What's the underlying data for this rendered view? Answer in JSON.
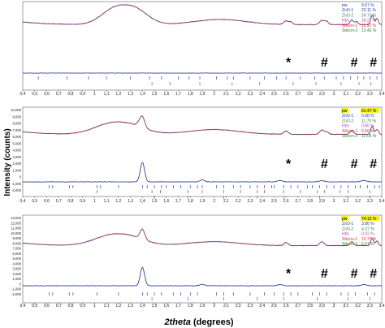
{
  "chart_data": {
    "type": "line",
    "ylabel": "Intensity (counts)",
    "xlabel_italic": "2theta",
    "xlabel_rest": " (degrees)",
    "x_ticks": [
      "0,4",
      "0,5",
      "0,6",
      "0,7",
      "0,8",
      "0,9",
      "1",
      "1,1",
      "1,2",
      "1,3",
      "1,4",
      "1,5",
      "1,6",
      "1,7",
      "1,8",
      "1,9",
      "2",
      "2,1",
      "2,2",
      "2,3",
      "2,4",
      "2,5",
      "2,6",
      "2,7",
      "2,8",
      "2,9",
      "3",
      "3,1",
      "3,2",
      "3,3",
      "3,4"
    ],
    "xlim": [
      0.4,
      3.4
    ],
    "marker_positions": [
      2.62,
      2.92,
      3.17,
      3.33
    ],
    "marker_symbols": [
      "*",
      "#",
      "#",
      "#"
    ],
    "series_colors": {
      "observed": "#cc3344",
      "calculated": "#3355aa",
      "difference": "#1a2a8a"
    },
    "panels": [
      {
        "y_ticks": [],
        "legend": [
          {
            "name": "pw",
            "value": "9.97 %",
            "color": "#3333aa",
            "highlight": false
          },
          {
            "name": "ZnO-1",
            "value": "22.11 %",
            "color": "#3333aa",
            "highlight": false
          },
          {
            "name": "ZnO-2",
            "value": "24.71 %",
            "color": "#228833",
            "highlight": false
          },
          {
            "name": "Hbs",
            "value": "18.27 %",
            "color": "#bb44bb",
            "highlight": false
          },
          {
            "name": "Silicon-1",
            "value": "11.52 %",
            "color": "#cc3344",
            "highlight": false
          },
          {
            "name": "Silicon-2",
            "value": "13.42 %",
            "color": "#228833",
            "highlight": false
          }
        ],
        "profile": {
          "baseline": 0.62,
          "humps": [
            [
              0.4,
              0.05,
              0.2,
              1.2
            ],
            [
              1.25,
              0.38,
              0.22,
              2.5
            ],
            [
              2.05,
              0.1,
              0.3,
              2.0
            ]
          ],
          "peaks": [
            [
              2.6,
              0.07,
              0.018
            ],
            [
              2.64,
              0.05,
              0.015
            ],
            [
              2.9,
              0.08,
              0.02
            ],
            [
              2.94,
              0.06,
              0.015
            ],
            [
              3.15,
              0.09,
              0.015
            ],
            [
              3.19,
              0.06,
              0.012
            ],
            [
              3.32,
              0.18,
              0.012
            ],
            [
              3.36,
              0.12,
              0.012
            ]
          ],
          "scale": 1.0
        },
        "diff": {
          "peaks": [],
          "noise": 0.01
        },
        "refs": {
          "row1": [
            0.53,
            0.77,
            0.95,
            1.1,
            1.3,
            1.46,
            1.56,
            1.7,
            1.79,
            1.88,
            2.02,
            2.11,
            2.16,
            2.3,
            2.42,
            2.52,
            2.6,
            2.72,
            2.84,
            2.92,
            3.02,
            3.08,
            3.14,
            3.2,
            3.25,
            3.3,
            3.36
          ],
          "row2": [
            1.48,
            1.63,
            1.88,
            2.15,
            2.38,
            2.66,
            2.85,
            3.06,
            3.21,
            3.31
          ]
        }
      },
      {
        "y_ticks": [
          "10,000",
          "9,000",
          "8,000",
          "7,000",
          "6,000",
          "5,000",
          "4,000",
          "3,000",
          "2,000",
          "1,000",
          "0",
          "-1,000",
          "-2,000"
        ],
        "legend": [
          {
            "name": "pw",
            "value": "61.47 %",
            "color": "#000000",
            "highlight": true
          },
          {
            "name": "ZnO-1",
            "value": "6.98 %",
            "color": "#3333aa",
            "highlight": false
          },
          {
            "name": "ZnO-2",
            "value": "11.70 %",
            "color": "#228833",
            "highlight": false
          },
          {
            "name": "Hbs",
            "value": "0.80 %",
            "color": "#bb44bb",
            "highlight": false
          },
          {
            "name": "Silicon-1",
            "value": "6.56 %",
            "color": "#cc3344",
            "highlight": false
          },
          {
            "name": "Silicon-2",
            "value": "12.06 %",
            "color": "#228833",
            "highlight": false
          }
        ],
        "profile": {
          "baseline": 0.5,
          "humps": [
            [
              0.4,
              0.05,
              0.2,
              1.2
            ],
            [
              1.2,
              0.26,
              0.25,
              2.2
            ],
            [
              2.0,
              0.1,
              0.3,
              2.0
            ]
          ],
          "peaks": [
            [
              1.4,
              0.22,
              0.02
            ],
            [
              1.37,
              0.05,
              0.02
            ],
            [
              2.6,
              0.07,
              0.018
            ],
            [
              2.9,
              0.09,
              0.018
            ],
            [
              2.94,
              0.05,
              0.015
            ],
            [
              3.15,
              0.08,
              0.015
            ],
            [
              3.32,
              0.17,
              0.012
            ],
            [
              3.36,
              0.1,
              0.012
            ]
          ],
          "scale": 1.0
        },
        "diff": {
          "peaks": [
            [
              1.4,
              0.8,
              0.018
            ],
            [
              1.9,
              0.08,
              0.02
            ],
            [
              2.55,
              0.06,
              0.02
            ],
            [
              2.9,
              0.05,
              0.02
            ],
            [
              3.25,
              0.06,
              0.02
            ]
          ],
          "noise": 0.015
        },
        "refs": {
          "row1": [
            0.62,
            0.65,
            0.79,
            0.82,
            1.02,
            1.05,
            1.2,
            1.4,
            1.44,
            1.5,
            1.56,
            1.6,
            1.66,
            1.72,
            1.8,
            1.86,
            1.9,
            2.02,
            2.08,
            2.16,
            2.22,
            2.3,
            2.36,
            2.42,
            2.48,
            2.5,
            2.58,
            2.64,
            2.7,
            2.78,
            2.82,
            2.88,
            2.94,
            3.0,
            3.06,
            3.12,
            3.18,
            3.22,
            3.28,
            3.34,
            3.38
          ],
          "row2": [
            1.02,
            1.48,
            1.55,
            1.78,
            1.9,
            2.08,
            2.22,
            2.36,
            2.42,
            2.58,
            2.72,
            2.86,
            2.92,
            3.05,
            3.12,
            3.3
          ],
          "row3": [
            1.5,
            1.78,
            2.08,
            2.36,
            2.58,
            2.88,
            3.12,
            3.3
          ]
        }
      },
      {
        "y_ticks": [
          "13,000",
          "12,000",
          "11,000",
          "10,000",
          "9,000",
          "8,000",
          "7,000",
          "6,000",
          "5,000",
          "4,000",
          "3,000",
          "2,000",
          "1,000",
          "0",
          "-1,000",
          "-2,000"
        ],
        "legend": [
          {
            "name": "pw",
            "value": "74.12 %",
            "color": "#000000",
            "highlight": true
          },
          {
            "name": "ZnO-1",
            "value": "3.86 %",
            "color": "#3333aa",
            "highlight": false
          },
          {
            "name": "ZnO-2",
            "value": "4.37 %",
            "color": "#228833",
            "highlight": false
          },
          {
            "name": "Hbs",
            "value": "0.02 %",
            "color": "#bb44bb",
            "highlight": false
          },
          {
            "name": "Silicon-1",
            "value": "10.77 %",
            "color": "#cc3344",
            "highlight": false
          },
          {
            "name": "Silicon-2",
            "value": "6.87 %",
            "color": "#228833",
            "highlight": false
          }
        ],
        "profile": {
          "baseline": 0.45,
          "humps": [
            [
              0.4,
              0.05,
              0.2,
              1.2
            ],
            [
              1.2,
              0.24,
              0.25,
              2.2
            ],
            [
              2.0,
              0.08,
              0.3,
              2.0
            ]
          ],
          "peaks": [
            [
              1.4,
              0.2,
              0.02
            ],
            [
              2.6,
              0.06,
              0.018
            ],
            [
              2.9,
              0.08,
              0.018
            ],
            [
              3.15,
              0.08,
              0.015
            ],
            [
              3.32,
              0.15,
              0.012
            ],
            [
              3.36,
              0.09,
              0.012
            ]
          ],
          "scale": 1.0
        },
        "diff": {
          "peaks": [
            [
              1.4,
              0.75,
              0.018
            ],
            [
              1.9,
              0.06,
              0.02
            ],
            [
              2.55,
              0.05,
              0.02
            ],
            [
              3.25,
              0.05,
              0.02
            ]
          ],
          "noise": 0.015
        },
        "refs": {
          "row1": [
            0.62,
            0.65,
            0.79,
            0.82,
            1.02,
            1.2,
            1.4,
            1.44,
            1.5,
            1.56,
            1.66,
            1.72,
            1.8,
            1.86,
            2.02,
            2.08,
            2.16,
            2.3,
            2.42,
            2.5,
            2.58,
            2.64,
            2.7,
            2.82,
            2.88,
            2.94,
            3.06,
            3.12,
            3.18,
            3.28,
            3.34
          ],
          "row2": [
            1.48,
            1.78,
            2.08,
            2.36,
            2.58,
            2.86,
            3.12,
            3.3
          ]
        }
      }
    ]
  }
}
